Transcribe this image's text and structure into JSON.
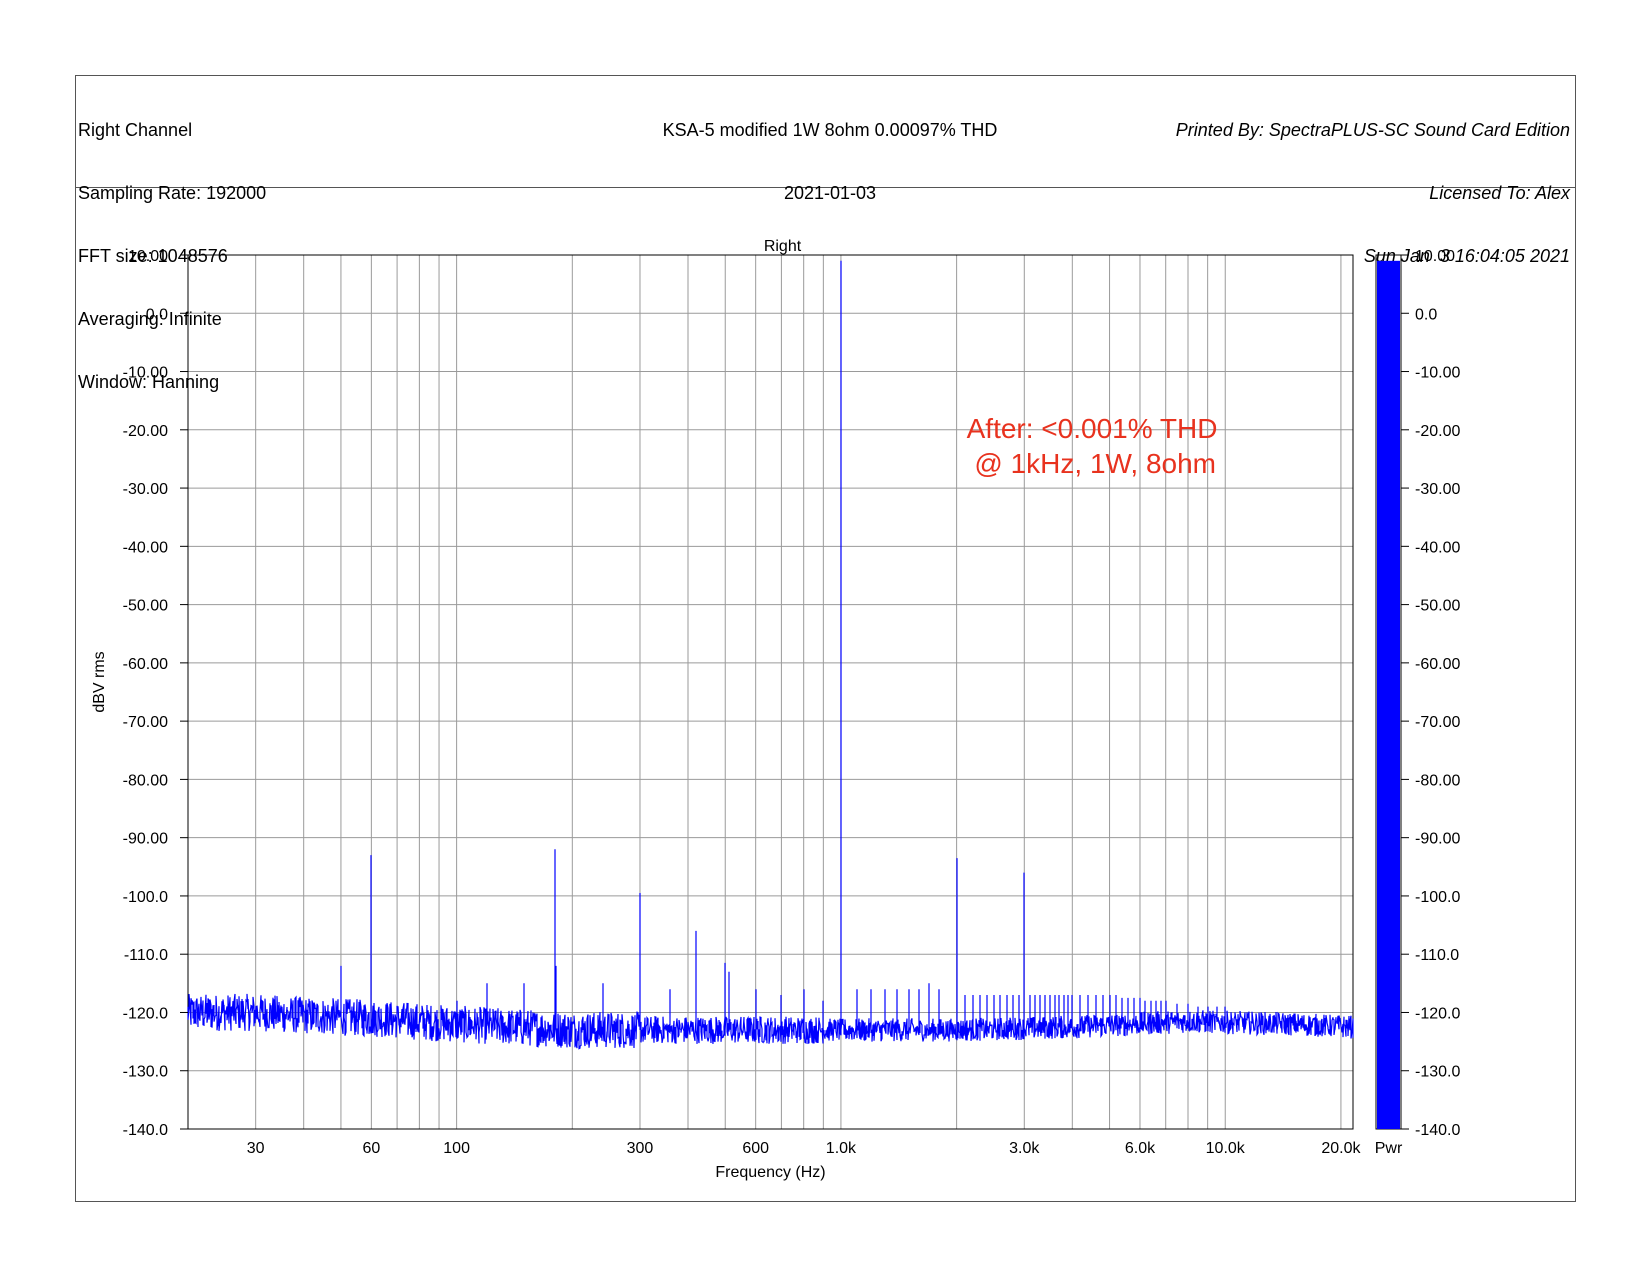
{
  "header": {
    "left_lines": [
      "Right Channel",
      "Sampling Rate: 192000",
      "FFT size: 1048576",
      "Averaging: Infinite",
      "Window: Hanning"
    ],
    "center_lines": [
      "KSA-5 modified 1W 8ohm 0.00097% THD",
      "2021-01-03"
    ],
    "right_lines": [
      "Printed By: SpectraPLUS-SC Sound Card Edition",
      "Licensed To: Alex",
      "Sun Jan  3 16:04:05 2021"
    ]
  },
  "chart_data": {
    "type": "line",
    "title": "Right",
    "xlabel": "Frequency (Hz)",
    "ylabel": "dBV rms",
    "xscale": "log",
    "xlim": [
      20,
      21500
    ],
    "ylim": [
      -140,
      10
    ],
    "x_ticks": [
      {
        "value": 30,
        "label": "30"
      },
      {
        "value": 60,
        "label": "60"
      },
      {
        "value": 100,
        "label": "100"
      },
      {
        "value": 300,
        "label": "300"
      },
      {
        "value": 600,
        "label": "600"
      },
      {
        "value": 1000,
        "label": "1.0k"
      },
      {
        "value": 3000,
        "label": "3.0k"
      },
      {
        "value": 6000,
        "label": "6.0k"
      },
      {
        "value": 10000,
        "label": "10.0k"
      },
      {
        "value": 20000,
        "label": "20.0k"
      }
    ],
    "y_ticks": [
      {
        "value": 10,
        "label": "10.00"
      },
      {
        "value": 0,
        "label": "0.0"
      },
      {
        "value": -10,
        "label": "-10.00"
      },
      {
        "value": -20,
        "label": "-20.00"
      },
      {
        "value": -30,
        "label": "-30.00"
      },
      {
        "value": -40,
        "label": "-40.00"
      },
      {
        "value": -50,
        "label": "-50.00"
      },
      {
        "value": -60,
        "label": "-60.00"
      },
      {
        "value": -70,
        "label": "-70.00"
      },
      {
        "value": -80,
        "label": "-80.00"
      },
      {
        "value": -90,
        "label": "-90.00"
      },
      {
        "value": -100,
        "label": "-100.0"
      },
      {
        "value": -110,
        "label": "-110.0"
      },
      {
        "value": -120,
        "label": "-120.0"
      },
      {
        "value": -130,
        "label": "-130.0"
      },
      {
        "value": -140,
        "label": "-140.0"
      }
    ],
    "grid": true,
    "series_color": "#0000ff",
    "noise_floor": [
      [
        20,
        -120
      ],
      [
        30,
        -120
      ],
      [
        40,
        -120.5
      ],
      [
        60,
        -121
      ],
      [
        100,
        -122
      ],
      [
        200,
        -123
      ],
      [
        400,
        -123
      ],
      [
        700,
        -123
      ],
      [
        1000,
        -123
      ],
      [
        2000,
        -123
      ],
      [
        4000,
        -122.5
      ],
      [
        8000,
        -121.5
      ],
      [
        15000,
        -122
      ],
      [
        21500,
        -122.5
      ]
    ],
    "peaks": [
      [
        50,
        -112
      ],
      [
        60,
        -93
      ],
      [
        100,
        -118
      ],
      [
        120,
        -115
      ],
      [
        150,
        -115
      ],
      [
        180,
        -92
      ],
      [
        181,
        -112
      ],
      [
        240,
        -115
      ],
      [
        300,
        -99.5
      ],
      [
        360,
        -116
      ],
      [
        420,
        -106
      ],
      [
        500,
        -111.5
      ],
      [
        510,
        -113
      ],
      [
        600,
        -116
      ],
      [
        700,
        -117
      ],
      [
        800,
        -116
      ],
      [
        900,
        -118
      ],
      [
        1000,
        9
      ],
      [
        1100,
        -116
      ],
      [
        1200,
        -116
      ],
      [
        1300,
        -116
      ],
      [
        1400,
        -116
      ],
      [
        1500,
        -116
      ],
      [
        1600,
        -116
      ],
      [
        1700,
        -115
      ],
      [
        1800,
        -116
      ],
      [
        2000,
        -93.5
      ],
      [
        2100,
        -117
      ],
      [
        2200,
        -117
      ],
      [
        2300,
        -117
      ],
      [
        2400,
        -117
      ],
      [
        2500,
        -117
      ],
      [
        2600,
        -117
      ],
      [
        2700,
        -117
      ],
      [
        2800,
        -117
      ],
      [
        2900,
        -117
      ],
      [
        3000,
        -96
      ],
      [
        3100,
        -117
      ],
      [
        3200,
        -117
      ],
      [
        3300,
        -117
      ],
      [
        3400,
        -117
      ],
      [
        3500,
        -117
      ],
      [
        3600,
        -117
      ],
      [
        3700,
        -117
      ],
      [
        3800,
        -117
      ],
      [
        3900,
        -117
      ],
      [
        4000,
        -117
      ],
      [
        4200,
        -117
      ],
      [
        4400,
        -117
      ],
      [
        4600,
        -117
      ],
      [
        4800,
        -117
      ],
      [
        5000,
        -117
      ],
      [
        5200,
        -117
      ],
      [
        5400,
        -117.5
      ],
      [
        5600,
        -117.5
      ],
      [
        5800,
        -117.5
      ],
      [
        6000,
        -117.5
      ],
      [
        6200,
        -118
      ],
      [
        6400,
        -118
      ],
      [
        6600,
        -118
      ],
      [
        6800,
        -118
      ],
      [
        7000,
        -118
      ],
      [
        7500,
        -118.5
      ],
      [
        8000,
        -118.5
      ],
      [
        8500,
        -119
      ],
      [
        9000,
        -119
      ],
      [
        9500,
        -119
      ],
      [
        10000,
        -119
      ]
    ],
    "annotation": {
      "lines": [
        "After: <0.001% THD",
        " @ 1kHz, 1W, 8ohm"
      ],
      "x": 2000,
      "y": -20,
      "color": "#e8321e"
    },
    "meter": {
      "label": "Pwr",
      "value": 9,
      "color": "#0000ff",
      "range": [
        -140,
        10
      ]
    }
  }
}
